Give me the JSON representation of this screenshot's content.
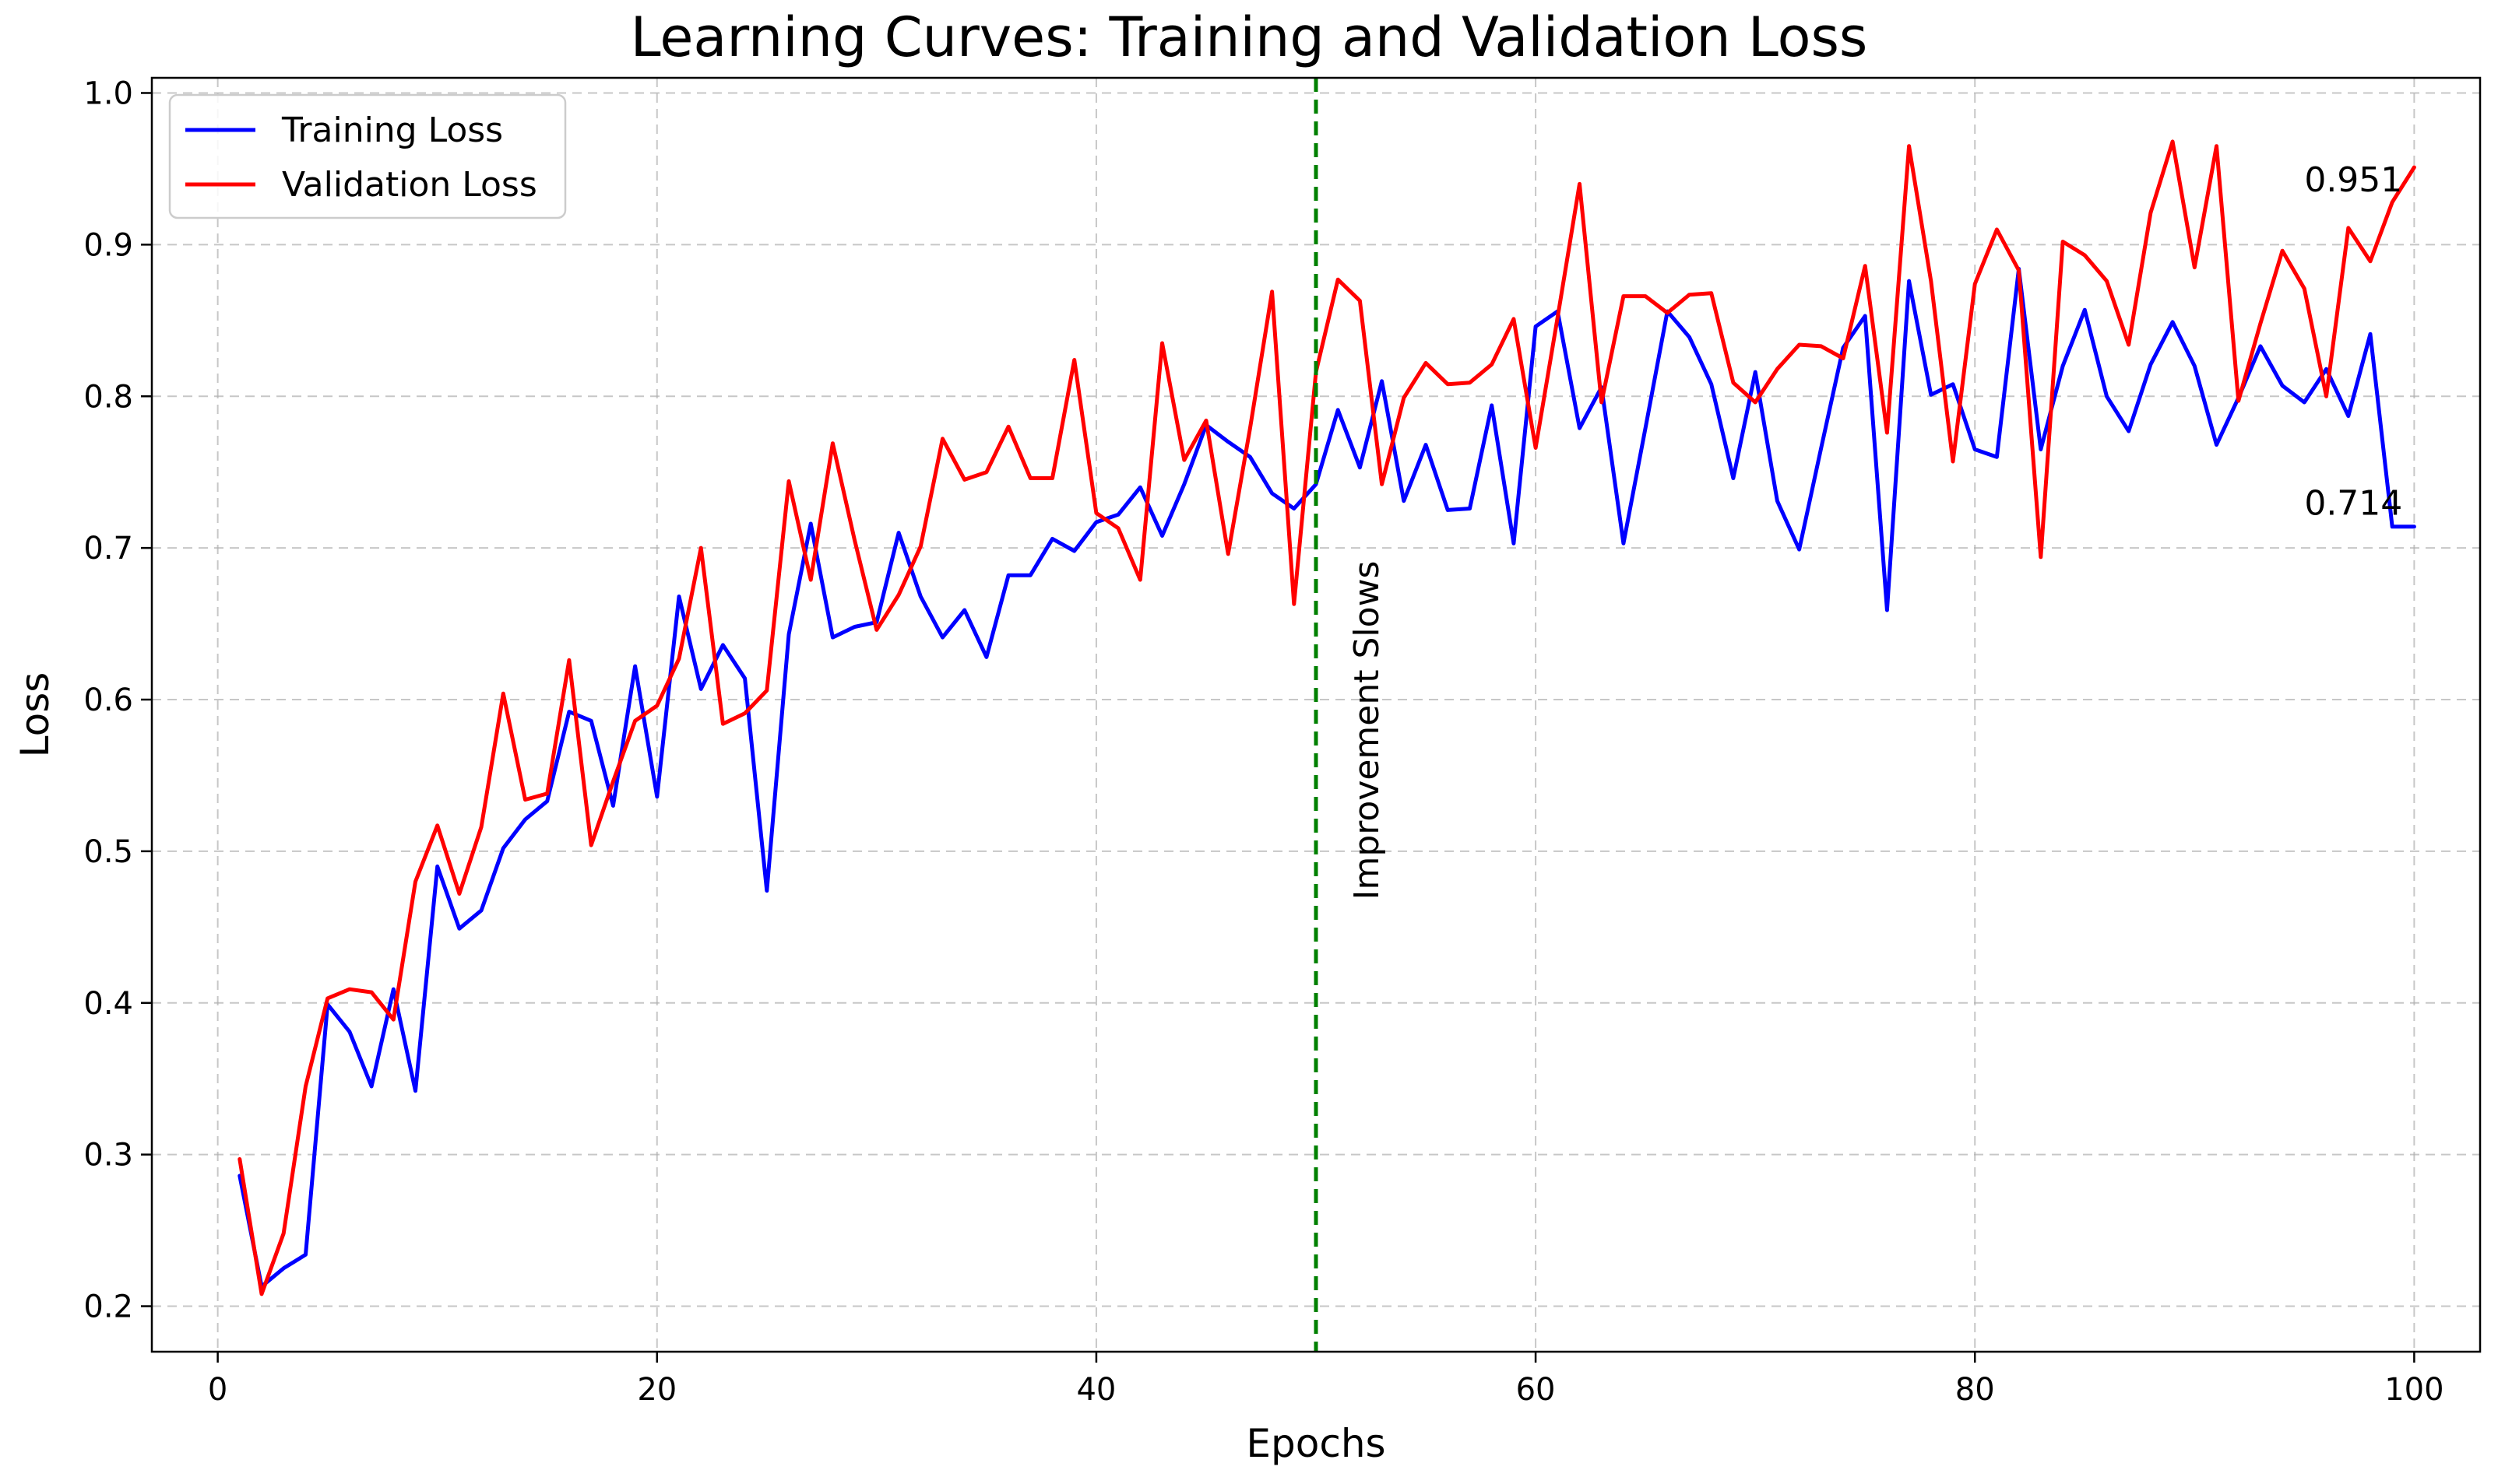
{
  "chart_data": {
    "type": "line",
    "title": "Learning Curves: Training and Validation Loss",
    "xlabel": "Epochs",
    "ylabel": "Loss",
    "xlim": [
      -3,
      103
    ],
    "ylim": [
      0.17,
      1.01
    ],
    "xticks": [
      0,
      20,
      40,
      60,
      80,
      100
    ],
    "yticks": [
      0.2,
      0.3,
      0.4,
      0.5,
      0.6,
      0.7,
      0.8,
      0.9,
      1.0
    ],
    "grid": true,
    "legend_position": "top-left",
    "x": [
      1,
      2,
      3,
      4,
      5,
      6,
      7,
      8,
      9,
      10,
      11,
      12,
      13,
      14,
      15,
      16,
      17,
      18,
      19,
      20,
      21,
      22,
      23,
      24,
      25,
      26,
      27,
      28,
      29,
      30,
      31,
      32,
      33,
      34,
      35,
      36,
      37,
      38,
      39,
      40,
      41,
      42,
      43,
      44,
      45,
      46,
      47,
      48,
      49,
      50,
      51,
      52,
      53,
      54,
      55,
      56,
      57,
      58,
      59,
      60,
      61,
      62,
      63,
      64,
      65,
      66,
      67,
      68,
      69,
      70,
      71,
      72,
      73,
      74,
      75,
      76,
      77,
      78,
      79,
      80,
      81,
      82,
      83,
      84,
      85,
      86,
      87,
      88,
      89,
      90,
      91,
      92,
      93,
      94,
      95,
      96,
      97,
      98,
      99,
      100
    ],
    "series": [
      {
        "name": "Training Loss",
        "color": "#0000ff",
        "values": [
          0.286,
          0.213,
          0.225,
          0.234,
          0.399,
          0.381,
          0.345,
          0.409,
          0.342,
          0.49,
          0.449,
          0.461,
          0.502,
          0.521,
          0.533,
          0.592,
          0.586,
          0.53,
          0.622,
          0.536,
          0.668,
          0.607,
          0.636,
          0.614,
          0.474,
          0.643,
          0.716,
          0.641,
          0.648,
          0.651,
          0.71,
          0.668,
          0.641,
          0.659,
          0.628,
          0.682,
          0.682,
          0.706,
          0.698,
          0.717,
          0.722,
          0.74,
          0.708,
          0.742,
          0.781,
          0.77,
          0.76,
          0.736,
          0.726,
          0.742,
          0.791,
          0.753,
          0.81,
          0.731,
          0.768,
          0.725,
          0.726,
          0.794,
          0.703,
          0.846,
          0.856,
          0.779,
          0.806,
          0.703,
          0.779,
          0.856,
          0.839,
          0.808,
          0.746,
          0.816,
          0.731,
          0.699,
          0.766,
          0.832,
          0.853,
          0.659,
          0.876,
          0.801,
          0.808,
          0.765,
          0.76,
          0.884,
          0.765,
          0.82,
          0.857,
          0.8,
          0.777,
          0.821,
          0.849,
          0.82,
          0.768,
          0.799,
          0.833,
          0.807,
          0.796,
          0.818,
          0.787,
          0.841,
          0.714,
          0.714
        ]
      },
      {
        "name": "Validation Loss",
        "color": "#ff0000",
        "values": [
          0.297,
          0.208,
          0.248,
          0.345,
          0.403,
          0.409,
          0.407,
          0.389,
          0.48,
          0.517,
          0.472,
          0.516,
          0.604,
          0.534,
          0.538,
          0.626,
          0.504,
          0.546,
          0.586,
          0.596,
          0.627,
          0.7,
          0.584,
          0.591,
          0.606,
          0.744,
          0.679,
          0.769,
          0.705,
          0.646,
          0.669,
          0.701,
          0.772,
          0.745,
          0.75,
          0.78,
          0.746,
          0.746,
          0.824,
          0.723,
          0.713,
          0.679,
          0.835,
          0.758,
          0.784,
          0.696,
          0.779,
          0.869,
          0.663,
          0.816,
          0.877,
          0.863,
          0.742,
          0.799,
          0.822,
          0.808,
          0.809,
          0.821,
          0.851,
          0.766,
          0.852,
          0.94,
          0.796,
          0.866,
          0.866,
          0.855,
          0.867,
          0.868,
          0.809,
          0.796,
          0.818,
          0.834,
          0.833,
          0.825,
          0.886,
          0.776,
          0.965,
          0.876,
          0.757,
          0.874,
          0.91,
          0.883,
          0.694,
          0.902,
          0.893,
          0.876,
          0.834,
          0.921,
          0.968,
          0.885,
          0.965,
          0.797,
          0.848,
          0.896,
          0.871,
          0.8,
          0.911,
          0.889,
          0.928,
          0.951
        ]
      }
    ],
    "vline": {
      "x": 50,
      "color": "#008000",
      "label": "Improvement Slows"
    },
    "annotations": [
      {
        "text": "0.951",
        "x": 95,
        "y": 0.935
      },
      {
        "text": "0.714",
        "x": 95,
        "y": 0.722
      }
    ]
  }
}
